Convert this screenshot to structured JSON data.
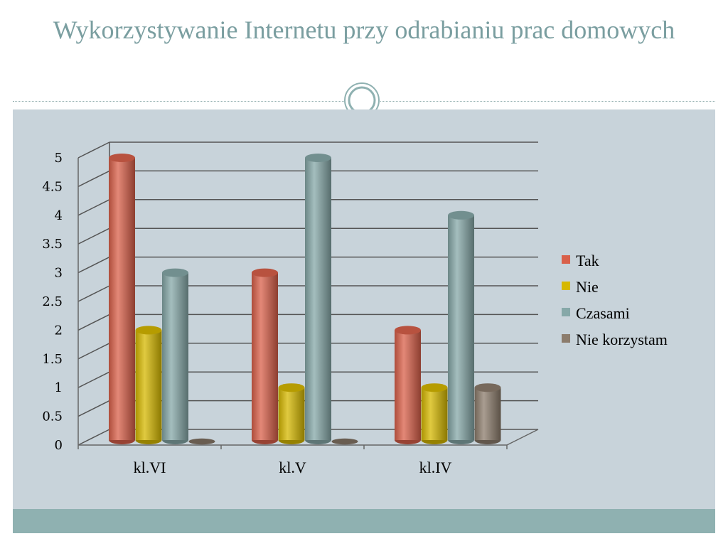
{
  "slide": {
    "title": "Wykorzystywanie Internetu przy odrabianiu prac domowych"
  },
  "chart_data": {
    "type": "bar",
    "categories": [
      "kl.VI",
      "kl.V",
      "kl.IV"
    ],
    "series": [
      {
        "name": "Tak",
        "values": [
          5,
          3,
          2
        ],
        "color": "#d9604a"
      },
      {
        "name": "Nie",
        "values": [
          2,
          1,
          1
        ],
        "color": "#d6b800"
      },
      {
        "name": "Czasami",
        "values": [
          3,
          5,
          4
        ],
        "color": "#86a8a8"
      },
      {
        "name": "Nie korzystam",
        "values": [
          0,
          0,
          1
        ],
        "color": "#8c7c6c"
      }
    ],
    "ylim": [
      0,
      5
    ],
    "yticks": [
      "0",
      "0.5",
      "1",
      "1.5",
      "2",
      "2.5",
      "3",
      "3.5",
      "4",
      "4.5",
      "5"
    ],
    "grid": true,
    "legend_position": "right"
  }
}
